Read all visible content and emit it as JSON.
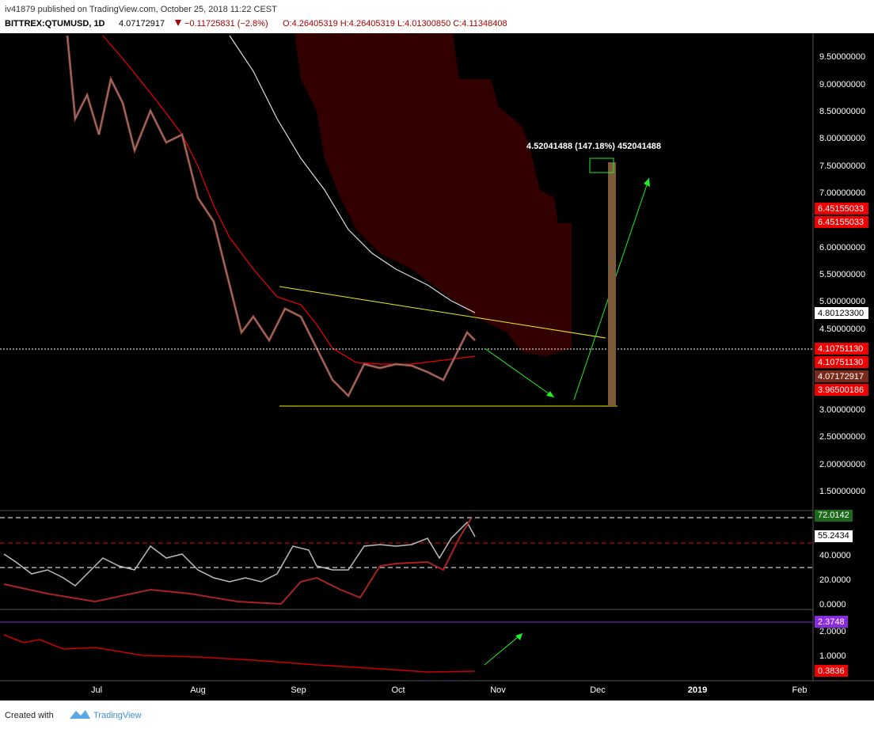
{
  "header": {
    "publisher": "iv41879 published on TradingView.com, October 25, 2018 11:22 CEST",
    "symbol": "BITTREX:QTUMUSD, 1D",
    "price": "4.07172917",
    "change": "−0.11725831 (−2.8%)",
    "ohlc": "O:4.26405319 H:4.26405319 L:4.01300850 C:4.11348408"
  },
  "price_axis": [
    "9.50000000",
    "9.00000000",
    "8.50000000",
    "8.00000000",
    "7.50000000",
    "7.00000000",
    "6.00000000",
    "5.50000000",
    "5.00000000",
    "4.50000000",
    "3.00000000",
    "2.50000000",
    "2.00000000",
    "1.50000000"
  ],
  "price_tags": [
    "6.45155033",
    "6.45155033",
    "4.80123300",
    "4.10751130",
    "4.10751130",
    "4.07172917",
    "3.96500186"
  ],
  "measure": "4.52041488 (147.18%) 452041488",
  "rsi_axis": [
    "40.0000",
    "20.0000",
    "0.0000"
  ],
  "rsi_tags": [
    "72.0142",
    "55.2434"
  ],
  "lower_axis": [
    "2.0000",
    "1.0000"
  ],
  "lower_tags": [
    "2.3748",
    "0.3836"
  ],
  "time_axis": [
    "Jul",
    "Aug",
    "Sep",
    "Oct",
    "Nov",
    "Dec",
    "2019",
    "Feb"
  ],
  "footer": {
    "created": "Created with",
    "brand": "TradingView"
  }
}
